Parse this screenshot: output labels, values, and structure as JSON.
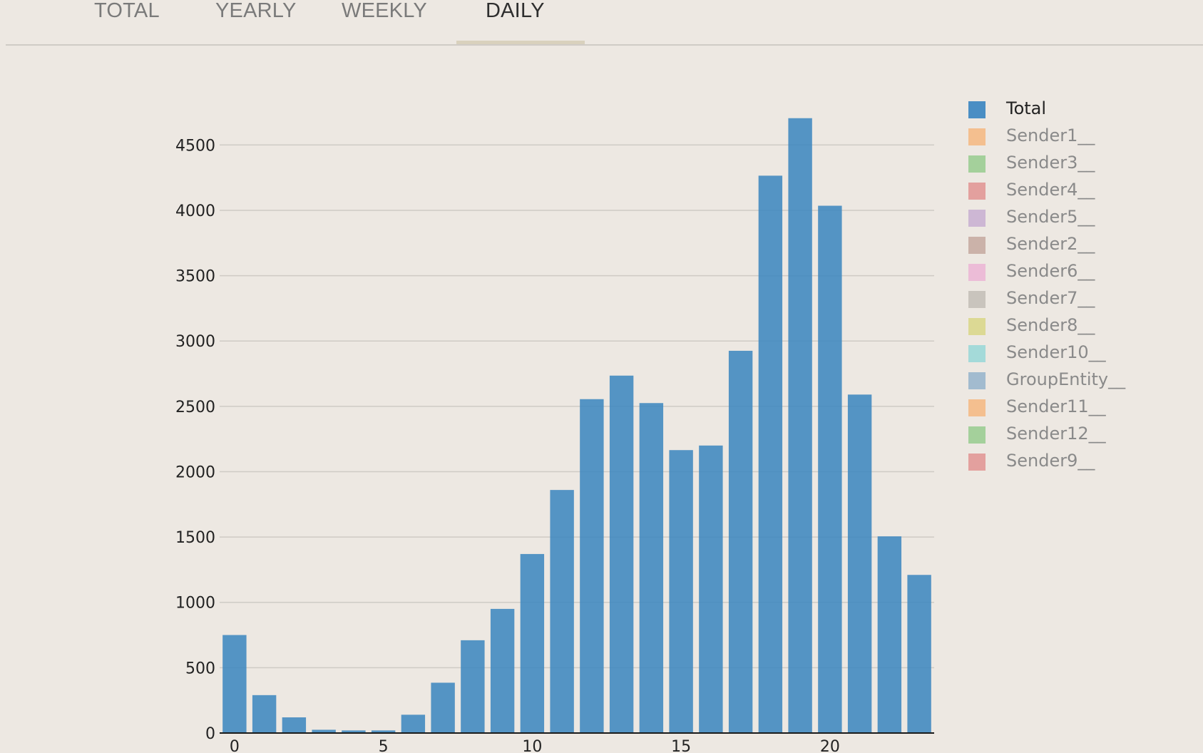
{
  "tabs": [
    {
      "label": "TOTAL",
      "active": false
    },
    {
      "label": "YEARLY",
      "active": false
    },
    {
      "label": "WEEKLY",
      "active": false
    },
    {
      "label": "DAILY",
      "active": true
    }
  ],
  "chart_data": {
    "type": "bar",
    "x": [
      0,
      1,
      2,
      3,
      4,
      5,
      6,
      7,
      8,
      9,
      10,
      11,
      12,
      13,
      14,
      15,
      16,
      17,
      18,
      19,
      20,
      21,
      22,
      23
    ],
    "series": [
      {
        "name": "Total",
        "color": "#3f87bf",
        "values": [
          750,
          290,
          120,
          25,
          20,
          20,
          140,
          385,
          710,
          950,
          1370,
          1860,
          2555,
          2735,
          2525,
          2165,
          2200,
          2925,
          4265,
          4705,
          4035,
          2590,
          1505,
          1210
        ]
      }
    ],
    "xticks": [
      0,
      5,
      10,
      15,
      20
    ],
    "yticks": [
      0,
      500,
      1000,
      1500,
      2000,
      2500,
      3000,
      3500,
      4000,
      4500
    ],
    "ylim": [
      0,
      4900
    ],
    "xlim": [
      -0.5,
      23.5
    ],
    "grid": true,
    "legend_position": "right"
  },
  "legend": [
    {
      "label": "Total",
      "color": "#4a8ec4",
      "visible": true
    },
    {
      "label": "Sender1__",
      "color": "#f4bf8f",
      "visible": false
    },
    {
      "label": "Sender3__",
      "color": "#a4d09b",
      "visible": false
    },
    {
      "label": "Sender4__",
      "color": "#e3a09e",
      "visible": false
    },
    {
      "label": "Sender5__",
      "color": "#cdb7d4",
      "visible": false
    },
    {
      "label": "Sender2__",
      "color": "#cbb2a9",
      "visible": false
    },
    {
      "label": "Sender6__",
      "color": "#ecbcd7",
      "visible": false
    },
    {
      "label": "Sender7__",
      "color": "#c9c4bd",
      "visible": false
    },
    {
      "label": "Sender8__",
      "color": "#dcd994",
      "visible": false
    },
    {
      "label": "Sender10__",
      "color": "#a4dad9",
      "visible": false
    },
    {
      "label": "GroupEntity__",
      "color": "#a2bbcf",
      "visible": false
    },
    {
      "label": "Sender11__",
      "color": "#f4bf8f",
      "visible": false
    },
    {
      "label": "Sender12__",
      "color": "#a4d09b",
      "visible": false
    },
    {
      "label": "Sender9__",
      "color": "#e3a09e",
      "visible": false
    }
  ]
}
